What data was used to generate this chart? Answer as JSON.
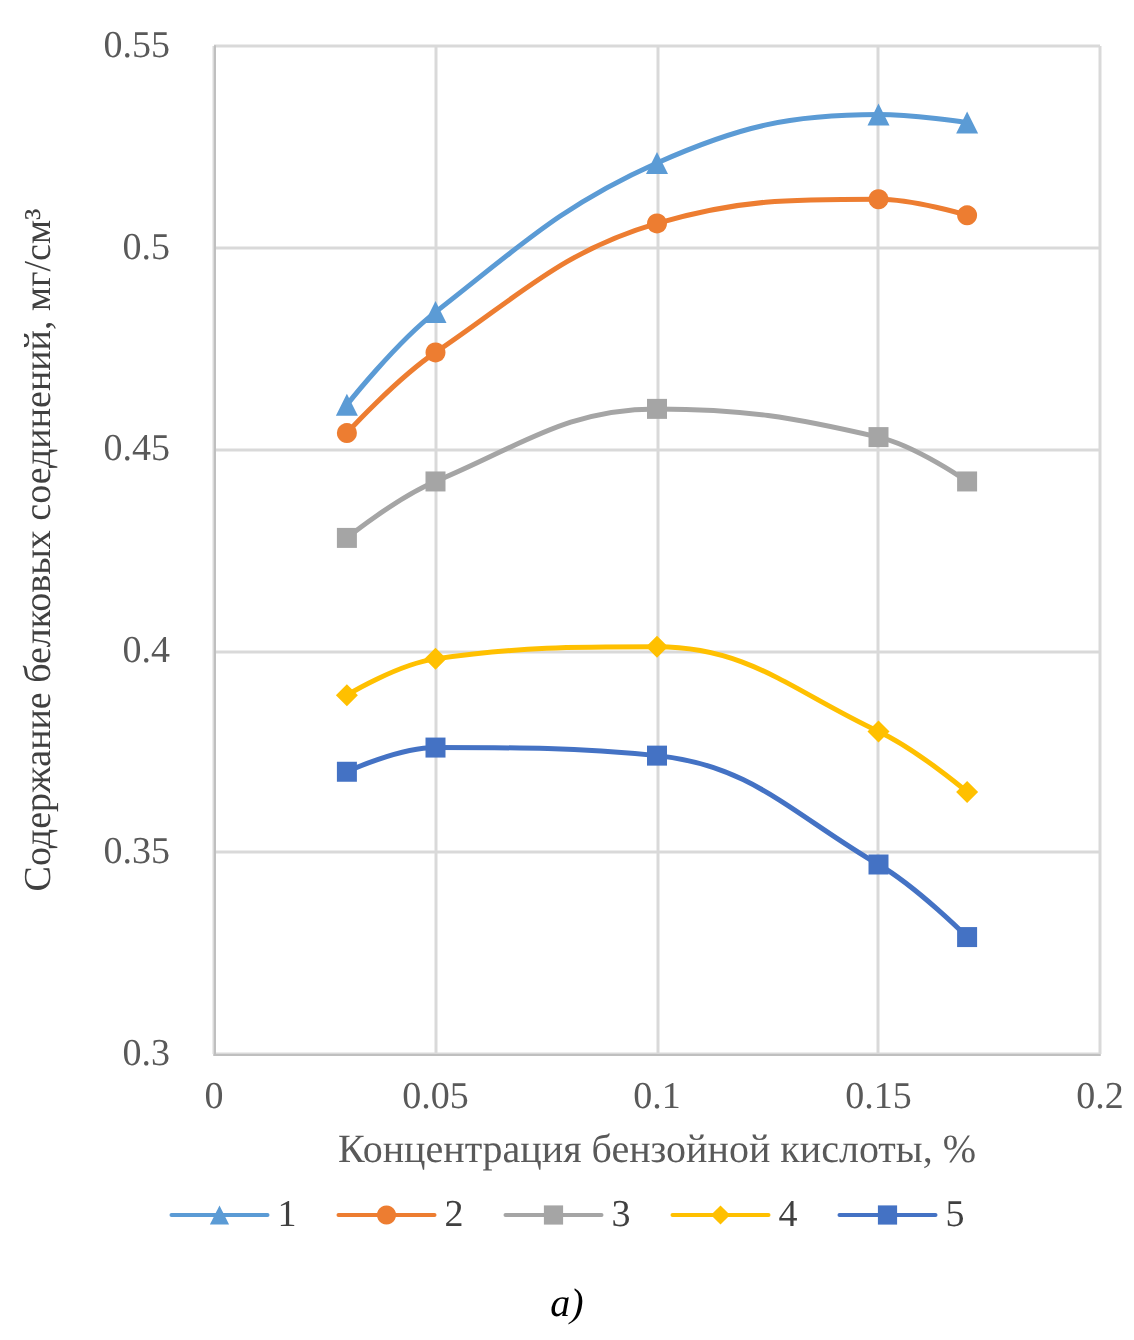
{
  "chart_data": {
    "type": "line",
    "xlabel": "Концентрация бензойной кислоты, %",
    "ylabel": "Содержание белковых соединений, мг/см³",
    "x": [
      0.03,
      0.05,
      0.1,
      0.15,
      0.17
    ],
    "series": [
      {
        "name": "1",
        "color": "#5b9bd5",
        "marker": "triangle",
        "values": [
          0.461,
          0.484,
          0.521,
          0.533,
          0.531
        ]
      },
      {
        "name": "2",
        "color": "#ed7d31",
        "marker": "circle",
        "values": [
          0.454,
          0.474,
          0.506,
          0.512,
          0.508
        ]
      },
      {
        "name": "3",
        "color": "#a5a5a5",
        "marker": "square",
        "values": [
          0.428,
          0.442,
          0.46,
          0.453,
          0.442
        ]
      },
      {
        "name": "4",
        "color": "#ffc000",
        "marker": "diamond",
        "values": [
          0.389,
          0.398,
          0.401,
          0.38,
          0.365
        ]
      },
      {
        "name": "5",
        "color": "#4472c4",
        "marker": "square",
        "values": [
          0.37,
          0.376,
          0.374,
          0.347,
          0.329
        ]
      }
    ],
    "xlim": [
      0,
      0.2
    ],
    "xticks": [
      0,
      0.05,
      0.1,
      0.15,
      0.2
    ],
    "ylim": [
      0.3,
      0.55
    ],
    "yticks": [
      0.3,
      0.35,
      0.4,
      0.45,
      0.5,
      0.55
    ],
    "grid": true,
    "legend": "bottom",
    "line_style": "solid",
    "annotations": [
      "a)"
    ]
  }
}
